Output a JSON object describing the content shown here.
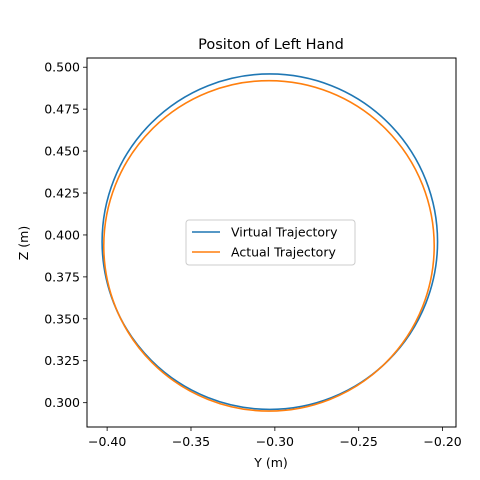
{
  "chart_data": {
    "type": "line",
    "title": "Positon of Left Hand",
    "xlabel": "Y (m)",
    "ylabel": "Z (m)",
    "xlim": [
      -0.412,
      -0.192
    ],
    "ylim": [
      0.2855,
      0.5055
    ],
    "xticks": [
      -0.4,
      -0.35,
      -0.3,
      -0.25,
      -0.2
    ],
    "xtick_labels": [
      "−0.40",
      "−0.35",
      "−0.30",
      "−0.25",
      "−0.20"
    ],
    "yticks": [
      0.3,
      0.325,
      0.35,
      0.375,
      0.4,
      0.425,
      0.45,
      0.475,
      0.5
    ],
    "ytick_labels": [
      "0.300",
      "0.325",
      "0.350",
      "0.375",
      "0.400",
      "0.425",
      "0.450",
      "0.475",
      "0.500"
    ],
    "grid": false,
    "legend_position": "center",
    "series": [
      {
        "name": "Virtual Trajectory",
        "color": "#1f77b4",
        "center": [
          -0.303,
          0.396
        ],
        "radius": [
          0.1,
          0.1
        ]
      },
      {
        "name": "Actual Trajectory",
        "color": "#ff7f0e",
        "center": [
          -0.3035,
          0.3935
        ],
        "radius": [
          0.0985,
          0.0985
        ]
      }
    ]
  }
}
